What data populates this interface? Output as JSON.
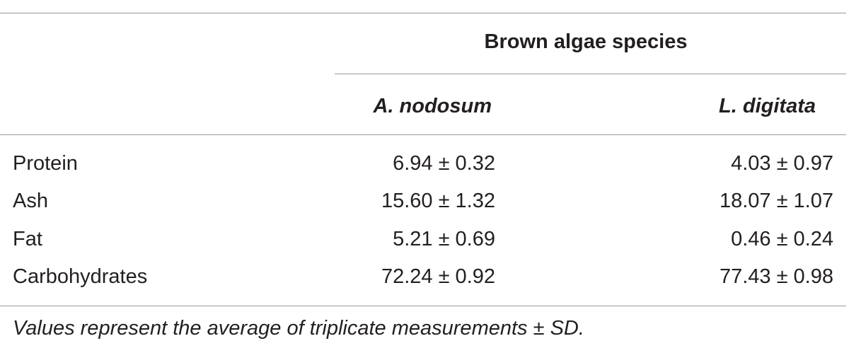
{
  "table": {
    "group_header": "Brown algae species",
    "columns": [
      "A. nodosum",
      "L. digitata"
    ],
    "rows": [
      [
        "Protein",
        "6.94 ± 0.32",
        "4.03 ± 0.97"
      ],
      [
        "Ash",
        "15.60 ± 1.32",
        "18.07 ± 1.07"
      ],
      [
        "Fat",
        "5.21 ± 0.69",
        "0.46 ± 0.24"
      ],
      [
        "Carbohydrates",
        "72.24 ± 0.92",
        "77.43 ± 0.98"
      ]
    ],
    "footnote": "Values represent the average of triplicate measurements ± SD."
  }
}
